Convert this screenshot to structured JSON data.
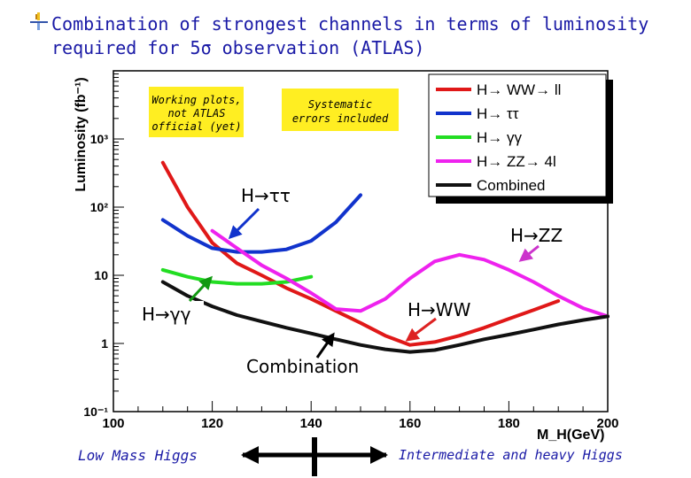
{
  "slide": {
    "title": "Combination of strongest channels in terms of luminosity required for 5σ observation (ATLAS)",
    "footer_left": "Low Mass Higgs",
    "footer_right": "Intermediate and heavy Higgs",
    "colors": {
      "title": "#1a1aa6",
      "note_bg": "#ffee22"
    }
  },
  "notes": {
    "note1": [
      "Working plots,",
      "not ATLAS",
      "official (yet)"
    ],
    "note2": [
      "Systematic",
      "errors included"
    ]
  },
  "annotations": {
    "tautau": "H→ττ",
    "zz": "H→ZZ",
    "ww": "H→WW",
    "gammagamma": "H→γγ",
    "combination": "Combination"
  },
  "chart_data": {
    "type": "line",
    "xlabel": "M_H(GeV)",
    "ylabel": "Luminosity (fb⁻¹)",
    "xlim": [
      100,
      200
    ],
    "ylim": [
      0.1,
      10000
    ],
    "log_y": true,
    "x_ticks": [
      "100",
      "120",
      "140",
      "160",
      "180",
      "200"
    ],
    "y_ticks": [
      "10⁻¹",
      "1",
      "10",
      "10²",
      "10³"
    ],
    "legend_position": "top-right",
    "series": [
      {
        "name": "H→ WW→ ll",
        "color": "#e01818",
        "x": [
          110,
          115,
          120,
          125,
          130,
          135,
          140,
          145,
          150,
          155,
          160,
          165,
          170,
          175,
          180,
          185,
          190
        ],
        "y": [
          450,
          100,
          30,
          15,
          10,
          6.5,
          4.5,
          3,
          2,
          1.3,
          0.95,
          1.05,
          1.3,
          1.7,
          2.3,
          3.1,
          4.2
        ]
      },
      {
        "name": "H→ ττ",
        "color": "#1133cc",
        "x": [
          110,
          115,
          120,
          125,
          130,
          135,
          140,
          145,
          150
        ],
        "y": [
          65,
          38,
          25,
          22,
          22,
          24,
          32,
          60,
          150
        ]
      },
      {
        "name": "H→ γγ",
        "color": "#22dd22",
        "x": [
          110,
          115,
          120,
          125,
          130,
          135,
          140
        ],
        "y": [
          12,
          9.5,
          8,
          7.5,
          7.5,
          8,
          9.5
        ]
      },
      {
        "name": "H→ ZZ→ 4l",
        "color": "#ee22ee",
        "x": [
          120,
          125,
          130,
          135,
          140,
          145,
          150,
          155,
          160,
          165,
          170,
          175,
          180,
          185,
          190,
          195,
          200
        ],
        "y": [
          45,
          25,
          14,
          9,
          5.5,
          3.2,
          3,
          4.5,
          9,
          16,
          20,
          17,
          12,
          8,
          5,
          3.3,
          2.5
        ]
      },
      {
        "name": "Combined",
        "color": "#111111",
        "x": [
          110,
          115,
          120,
          125,
          130,
          135,
          140,
          145,
          150,
          155,
          160,
          165,
          170,
          175,
          180,
          185,
          190,
          195,
          200
        ],
        "y": [
          8,
          5,
          3.5,
          2.6,
          2.1,
          1.7,
          1.4,
          1.15,
          0.95,
          0.82,
          0.75,
          0.8,
          0.95,
          1.15,
          1.35,
          1.6,
          1.9,
          2.2,
          2.5
        ]
      }
    ]
  }
}
